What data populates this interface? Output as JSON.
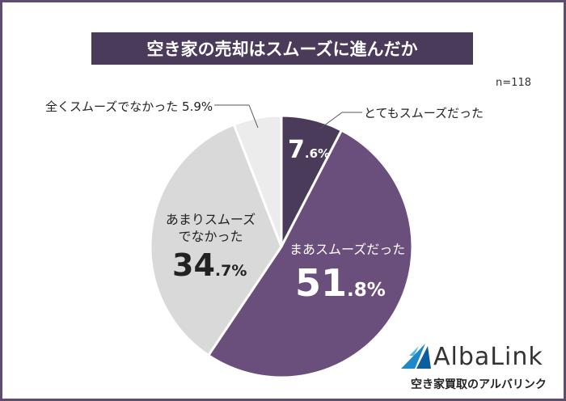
{
  "chart_data": {
    "type": "pie",
    "title": "空き家の売却はスムーズに進んだか",
    "note": "n=118",
    "categories": [
      "とてもスムーズだった",
      "まあスムーズだった",
      "あまりスムーズでなかった",
      "全くスムーズでなかった"
    ],
    "values": [
      7.6,
      51.8,
      34.7,
      5.9
    ],
    "value_labels": [
      "7.6%",
      "51.8%",
      "34.7%",
      "5.9%"
    ],
    "colors": [
      "#4b3b5b",
      "#6a4e7c",
      "#d9d9d9",
      "#ececec"
    ]
  },
  "logo": {
    "name": "AlbaLink",
    "tagline": "空き家買取のアルバリンク"
  }
}
